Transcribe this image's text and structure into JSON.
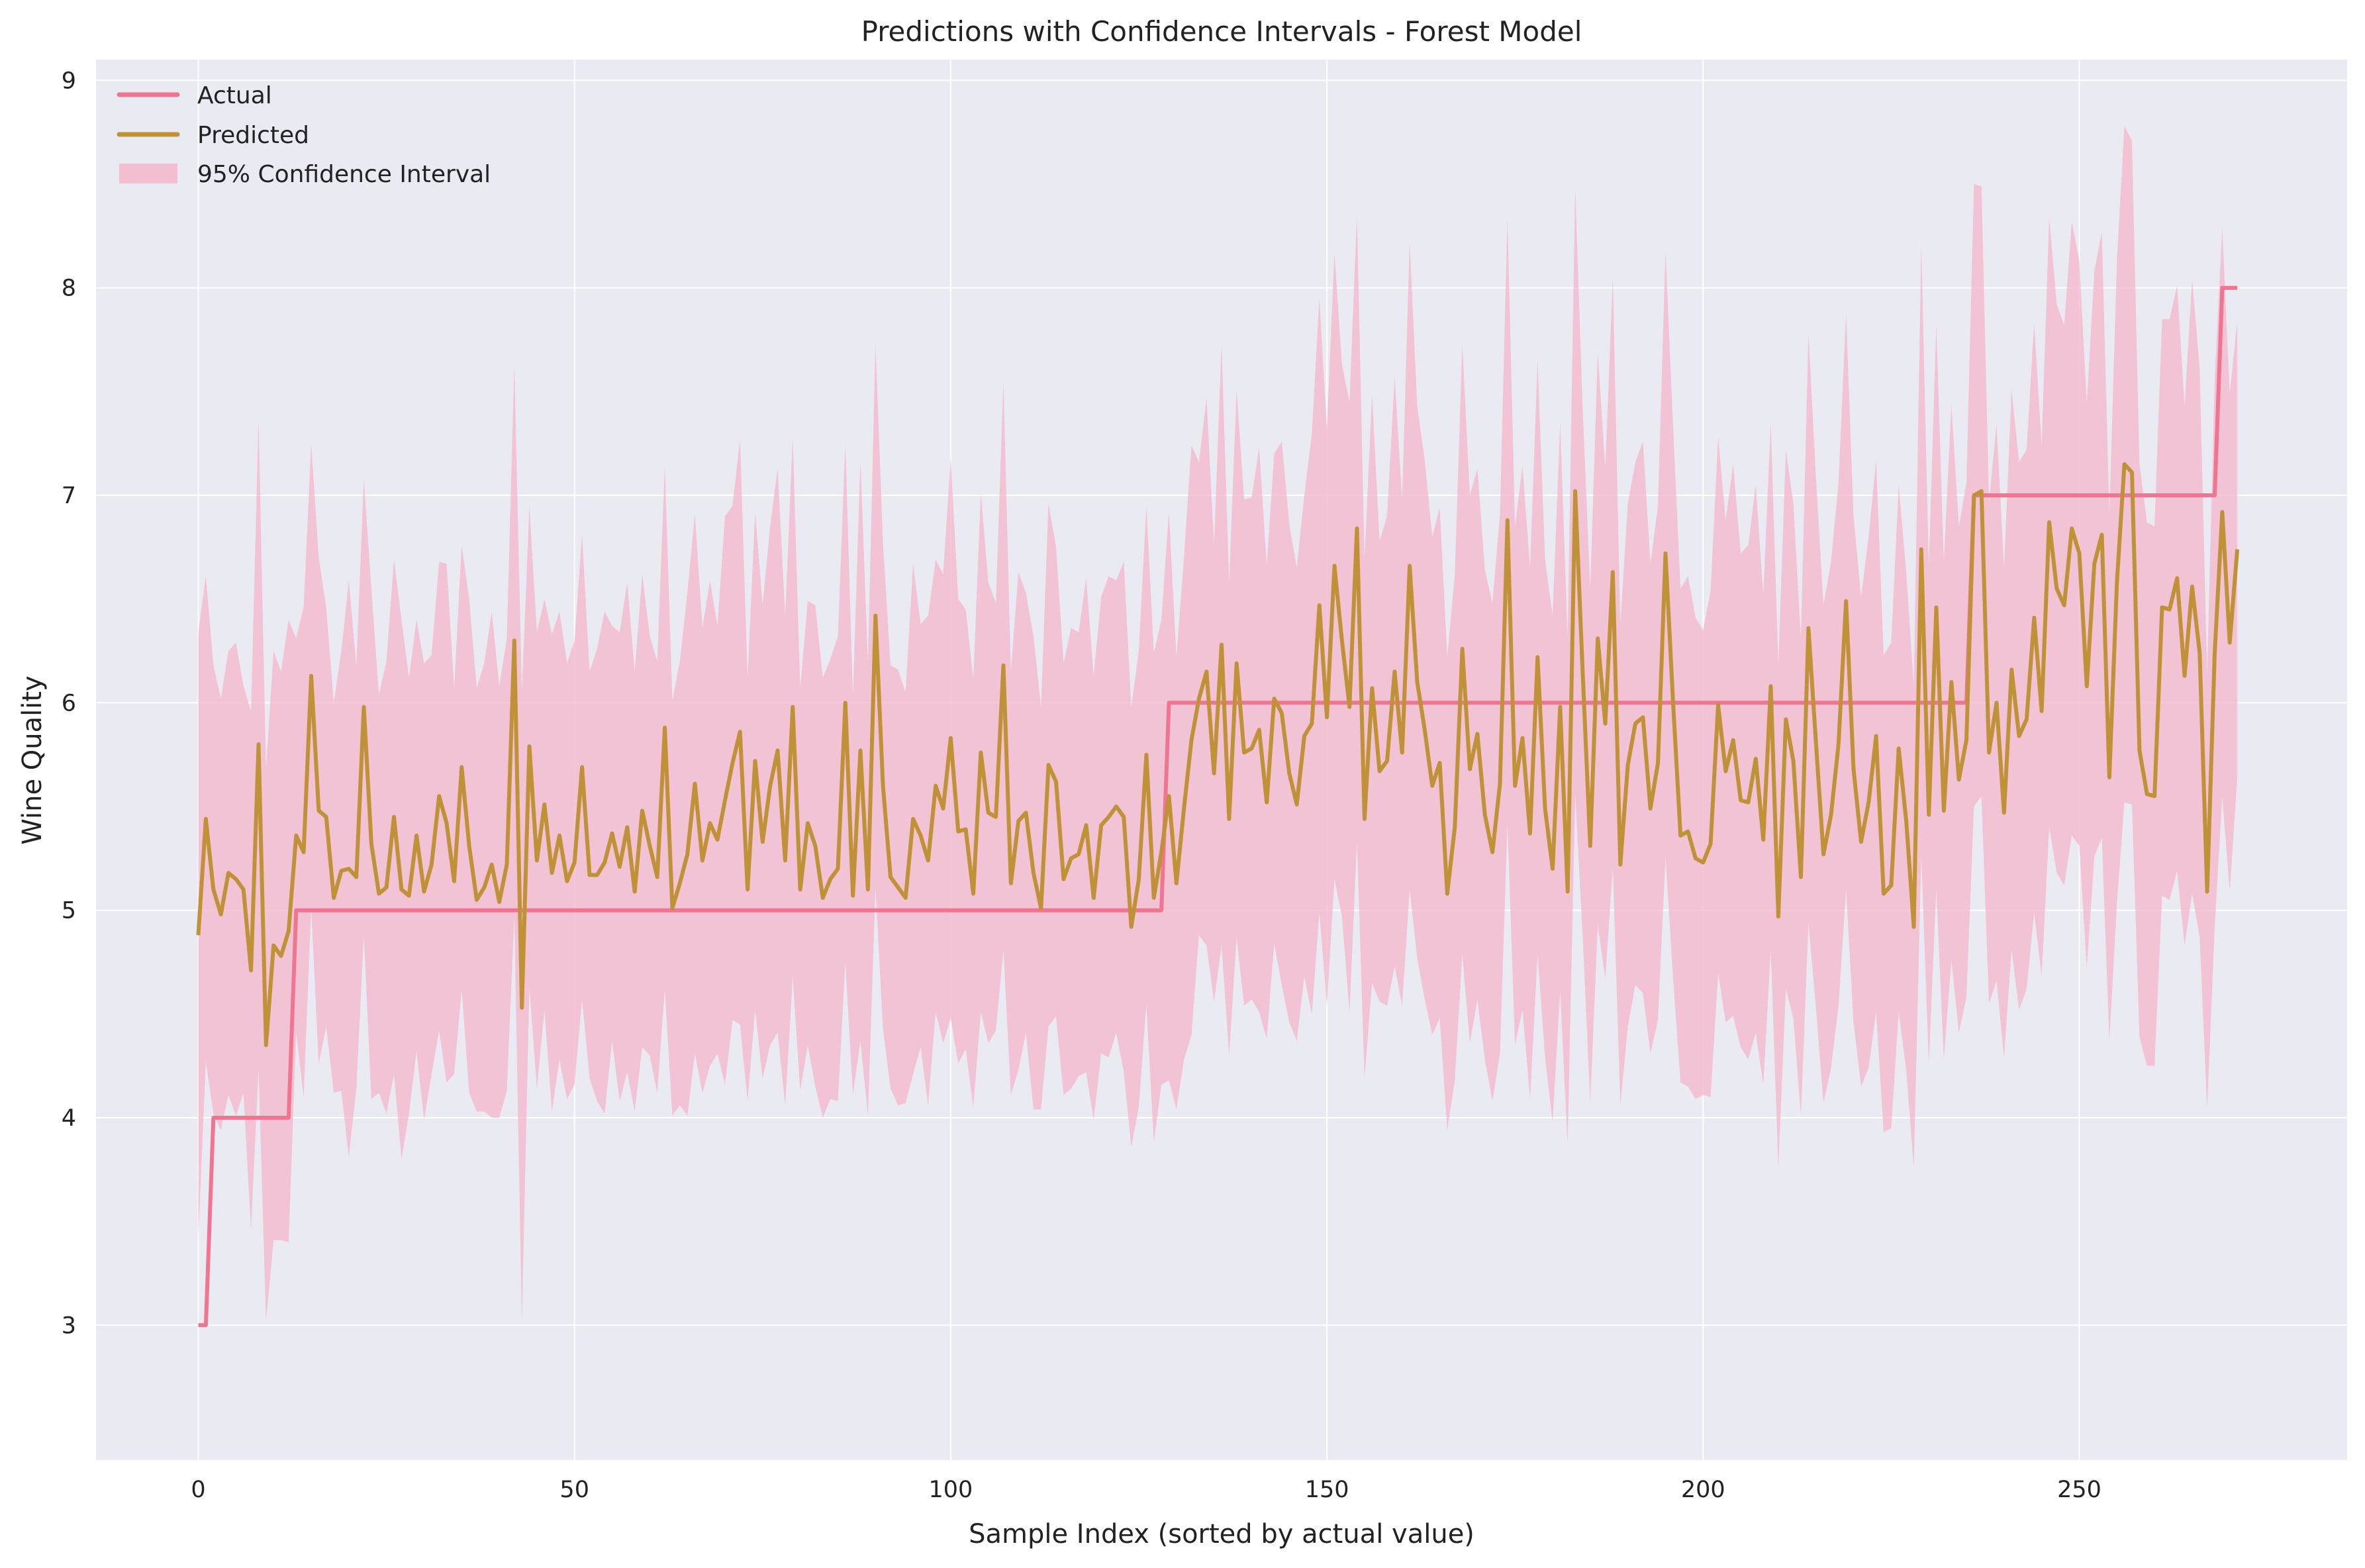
{
  "chart_data": {
    "type": "line",
    "title": "Predictions with Confidence Intervals - Forest Model",
    "xlabel": "Sample Index (sorted by actual value)",
    "ylabel": "Wine Quality",
    "xlim": [
      -13.6,
      285.6
    ],
    "ylim": [
      2.35,
      9.1
    ],
    "x_ticks": [
      0,
      50,
      100,
      150,
      200,
      250
    ],
    "y_ticks": [
      3,
      4,
      5,
      6,
      7,
      8,
      9
    ],
    "grid": true,
    "legend_position": "top-left",
    "colors": {
      "actual": "#f07590",
      "predicted": "#bf9238",
      "confidence_band": "#f4b6c9",
      "plot_background": "#eaeaf2",
      "grid": "#ffffff"
    },
    "legend": [
      {
        "key": "actual",
        "label": "Actual",
        "kind": "line"
      },
      {
        "key": "predicted",
        "label": "Predicted",
        "kind": "line"
      },
      {
        "key": "ci",
        "label": "95% Confidence Interval",
        "kind": "band"
      }
    ],
    "n_samples": 272,
    "actual_steps": [
      {
        "from": 0,
        "to": 1,
        "value": 3
      },
      {
        "from": 2,
        "to": 12,
        "value": 4
      },
      {
        "from": 13,
        "to": 128,
        "value": 5
      },
      {
        "from": 129,
        "to": 235,
        "value": 6
      },
      {
        "from": 236,
        "to": 268,
        "value": 7
      },
      {
        "from": 269,
        "to": 271,
        "value": 8
      }
    ],
    "predicted": [
      4.88,
      5.44,
      5.1,
      4.98,
      5.18,
      5.15,
      5.1,
      4.71,
      5.8,
      4.35,
      4.83,
      4.78,
      4.9,
      5.36,
      5.28,
      6.13,
      5.48,
      5.45,
      5.06,
      5.19,
      5.2,
      5.16,
      5.98,
      5.32,
      5.08,
      5.11,
      5.45,
      5.1,
      5.07,
      5.36,
      5.09,
      5.22,
      5.55,
      5.42,
      5.14,
      5.69,
      5.31,
      5.05,
      5.11,
      5.22,
      5.04,
      5.22,
      6.3,
      4.53,
      5.79,
      5.24,
      5.51,
      5.18,
      5.36,
      5.14,
      5.23,
      5.69,
      5.17,
      5.17,
      5.23,
      5.37,
      5.21,
      5.4,
      5.09,
      5.48,
      5.31,
      5.16,
      5.88,
      5.01,
      5.13,
      5.27,
      5.61,
      5.24,
      5.42,
      5.34,
      5.53,
      5.71,
      5.86,
      5.1,
      5.72,
      5.33,
      5.6,
      5.77,
      5.24,
      5.98,
      5.1,
      5.42,
      5.31,
      5.06,
      5.15,
      5.2,
      6.0,
      5.07,
      5.77,
      5.1,
      6.42,
      5.6,
      5.16,
      5.11,
      5.06,
      5.44,
      5.36,
      5.24,
      5.6,
      5.49,
      5.83,
      5.38,
      5.39,
      5.08,
      5.76,
      5.47,
      5.45,
      6.18,
      5.13,
      5.43,
      5.47,
      5.18,
      5.01,
      5.7,
      5.62,
      5.15,
      5.25,
      5.27,
      5.41,
      5.06,
      5.41,
      5.45,
      5.5,
      5.45,
      4.92,
      5.15,
      5.75,
      5.06,
      5.28,
      5.55,
      5.13,
      5.49,
      5.82,
      6.02,
      6.15,
      5.66,
      6.28,
      5.44,
      6.19,
      5.76,
      5.78,
      5.87,
      5.52,
      6.02,
      5.95,
      5.66,
      5.51,
      5.84,
      5.9,
      6.47,
      5.93,
      6.66,
      6.3,
      5.98,
      6.84,
      5.44,
      6.07,
      5.67,
      5.72,
      6.15,
      5.76,
      6.66,
      6.1,
      5.87,
      5.6,
      5.71,
      5.08,
      5.4,
      6.26,
      5.68,
      5.85,
      5.46,
      5.28,
      5.61,
      6.88,
      5.6,
      5.83,
      5.37,
      6.22,
      5.49,
      5.2,
      5.98,
      5.09,
      7.02,
      6.14,
      5.31,
      6.31,
      5.9,
      6.63,
      5.22,
      5.7,
      5.9,
      5.93,
      5.49,
      5.71,
      6.72,
      6.01,
      5.36,
      5.38,
      5.25,
      5.23,
      5.32,
      5.99,
      5.67,
      5.82,
      5.53,
      5.52,
      5.73,
      5.34,
      6.08,
      4.97,
      5.92,
      5.72,
      5.16,
      6.36,
      5.81,
      5.27,
      5.46,
      5.8,
      6.49,
      5.68,
      5.33,
      5.52,
      5.84,
      5.08,
      5.12,
      5.78,
      5.43,
      4.92,
      6.74,
      5.46,
      6.46,
      5.48,
      6.1,
      5.63,
      5.82,
      7.0,
      7.02,
      5.76,
      6.0,
      5.47,
      6.16,
      5.84,
      5.92,
      6.41,
      5.96,
      6.87,
      6.55,
      6.47,
      6.84,
      6.72,
      6.08,
      6.67,
      6.81,
      5.64,
      6.58,
      7.15,
      7.11,
      5.77,
      5.56,
      5.55,
      6.46,
      6.45,
      6.6,
      6.13,
      6.56,
      6.24,
      5.09,
      6.24,
      6.92,
      6.29,
      6.74
    ],
    "ci_width": [
      1.46,
      1.17,
      1.08,
      1.04,
      1.07,
      1.14,
      0.98,
      1.25,
      1.56,
      1.33,
      1.42,
      1.37,
      1.5,
      0.95,
      1.18,
      1.12,
      1.22,
      1.01,
      0.94,
      1.06,
      1.39,
      1.02,
      1.1,
      1.23,
      0.96,
      1.09,
      1.24,
      1.3,
      1.05,
      1.04,
      1.1,
      1.01,
      1.13,
      1.25,
      0.93,
      1.07,
      1.19,
      1.02,
      1.08,
      1.22,
      1.04,
      1.09,
      1.33,
      1.52,
      1.16,
      1.1,
      0.99,
      1.15,
      1.08,
      1.05,
      1.07,
      1.12,
      0.98,
      1.09,
      1.21,
      1.0,
      1.13,
      1.18,
      1.06,
      1.14,
      1.01,
      1.04,
      1.26,
      1.0,
      1.07,
      1.26,
      1.3,
      1.12,
      1.17,
      1.03,
      1.37,
      1.24,
      1.41,
      1.02,
      1.2,
      1.14,
      1.25,
      1.36,
      1.18,
      1.3,
      0.97,
      1.07,
      1.16,
      1.06,
      1.06,
      1.12,
      1.25,
      0.96,
      1.4,
      1.09,
      1.31,
      1.17,
      1.02,
      1.05,
      0.99,
      1.23,
      1.02,
      1.18,
      1.09,
      1.13,
      1.35,
      1.12,
      1.06,
      1.03,
      1.25,
      1.11,
      1.03,
      1.37,
      1.02,
      1.2,
      1.06,
      1.14,
      0.97,
      1.26,
      1.13,
      1.04,
      1.11,
      1.07,
      1.19,
      1.07,
      1.1,
      1.16,
      1.09,
      1.23,
      1.06,
      1.1,
      1.2,
      1.18,
      1.12,
      1.37,
      1.09,
      1.21,
      1.42,
      1.14,
      1.32,
      1.1,
      1.45,
      1.14,
      1.32,
      1.22,
      1.21,
      1.36,
      1.14,
      1.18,
      1.31,
      1.2,
      1.14,
      1.16,
      1.4,
      1.48,
      1.39,
      1.51,
      1.33,
      1.47,
      1.51,
      1.25,
      1.42,
      1.11,
      1.18,
      1.42,
      1.22,
      1.56,
      1.33,
      1.3,
      1.2,
      1.23,
      1.14,
      1.22,
      1.47,
      1.32,
      1.28,
      1.18,
      1.2,
      1.3,
      1.46,
      1.25,
      1.31,
      1.28,
      1.43,
      1.2,
      1.22,
      1.37,
      1.22,
      1.46,
      1.27,
      1.24,
      1.38,
      1.23,
      1.42,
      1.16,
      1.26,
      1.26,
      1.33,
      1.18,
      1.24,
      1.46,
      1.33,
      1.19,
      1.23,
      1.16,
      1.12,
      1.22,
      1.29,
      1.21,
      1.33,
      1.19,
      1.24,
      1.32,
      1.18,
      1.27,
      1.21,
      1.3,
      1.24,
      1.15,
      1.42,
      1.28,
      1.2,
      1.22,
      1.26,
      1.39,
      1.22,
      1.18,
      1.28,
      1.33,
      1.15,
      1.17,
      1.27,
      1.2,
      1.16,
      1.47,
      1.2,
      1.36,
      1.2,
      1.34,
      1.22,
      1.24,
      1.5,
      1.47,
      1.21,
      1.34,
      1.18,
      1.35,
      1.32,
      1.3,
      1.42,
      1.28,
      1.47,
      1.37,
      1.35,
      1.48,
      1.41,
      1.36,
      1.41,
      1.46,
      1.27,
      1.55,
      1.63,
      1.6,
      1.38,
      1.31,
      1.3,
      1.39,
      1.4,
      1.41,
      1.3,
      1.48,
      1.37,
      1.05,
      1.32,
      1.37,
      1.2,
      1.1
    ]
  }
}
